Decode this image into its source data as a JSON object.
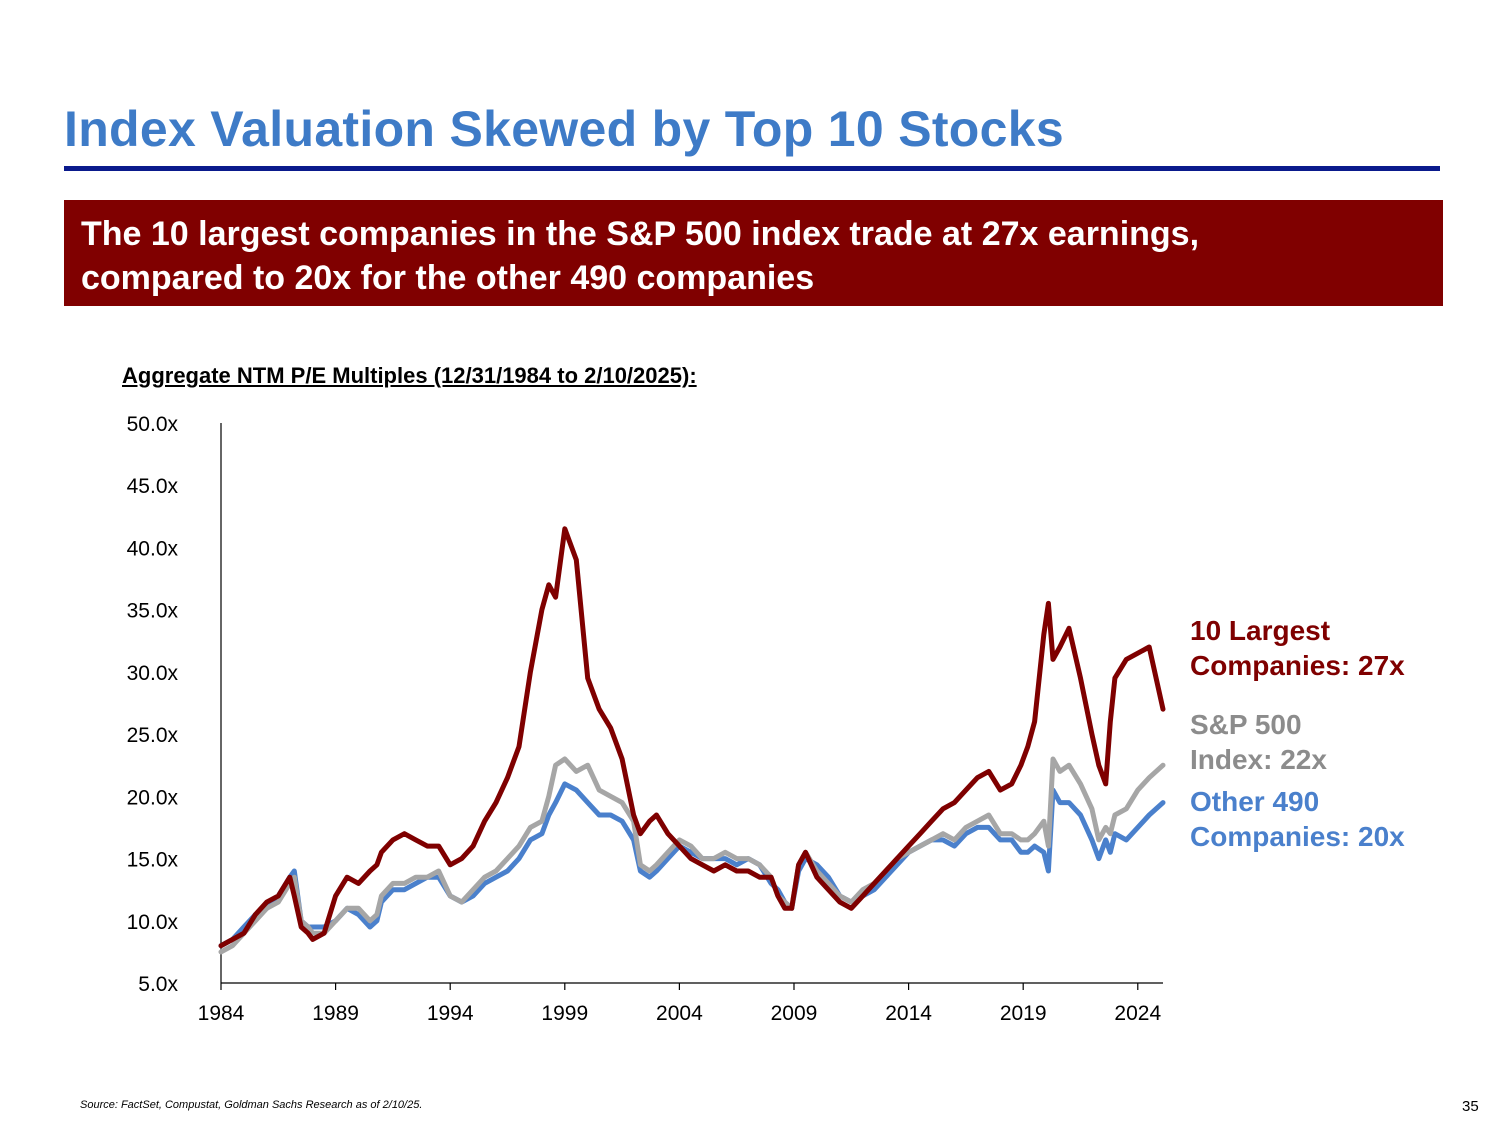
{
  "slide": {
    "title": "Index Valuation Skewed by Top 10 Stocks",
    "callout_line1": "The 10 largest companies in the S&P 500 index trade at 27x earnings,",
    "callout_line2": "compared to 20x for the other 490 companies",
    "chart_heading": "Aggregate NTM P/E Multiples (12/31/1984 to 2/10/2025):",
    "source": "Source: FactSet, Compustat, Goldman Sachs Research as of 2/10/25.",
    "page_number": "35"
  },
  "legend": {
    "top10_line1": "10 Largest",
    "top10_line2": "Companies: 27x",
    "sp500_line1": "S&P 500",
    "sp500_line2": "Index: 22x",
    "other_line1": "Other 490",
    "other_line2": "Companies: 20x"
  },
  "colors": {
    "title": "#3e7bc7",
    "rule": "#0a1a8c",
    "callout_bg": "#800000",
    "top10": "#7f0000",
    "sp500": "#a6a6a6",
    "other490": "#4a80cc"
  },
  "chart_data": {
    "type": "line",
    "title": "Aggregate NTM P/E Multiples (12/31/1984 to 2/10/2025):",
    "xlabel": "",
    "ylabel": "",
    "xlim": [
      1984,
      2025.1
    ],
    "ylim": [
      5,
      50
    ],
    "x_ticks": [
      1984,
      1989,
      1994,
      1999,
      2004,
      2009,
      2014,
      2019,
      2024
    ],
    "x_tick_labels": [
      "1984",
      "1989",
      "1994",
      "1999",
      "2004",
      "2009",
      "2014",
      "2019",
      "2024"
    ],
    "y_ticks": [
      5,
      10,
      15,
      20,
      25,
      30,
      35,
      40,
      45,
      50
    ],
    "y_tick_labels": [
      "5.0x",
      "10.0x",
      "15.0x",
      "20.0x",
      "25.0x",
      "30.0x",
      "35.0x",
      "40.0x",
      "45.0x",
      "50.0x"
    ],
    "grid": false,
    "series": [
      {
        "name": "Other 490 Companies",
        "key": "other490",
        "x": [
          1984.0,
          1984.5,
          1985.0,
          1985.5,
          1986.0,
          1986.5,
          1987.0,
          1987.2,
          1987.5,
          1987.8,
          1988.0,
          1988.5,
          1989.0,
          1989.5,
          1990.0,
          1990.5,
          1990.8,
          1991.0,
          1991.5,
          1992.0,
          1992.5,
          1993.0,
          1993.5,
          1994.0,
          1994.5,
          1995.0,
          1995.5,
          1996.0,
          1996.5,
          1997.0,
          1997.5,
          1998.0,
          1998.3,
          1998.6,
          1999.0,
          1999.5,
          2000.0,
          2000.5,
          2001.0,
          2001.5,
          2002.0,
          2002.3,
          2002.7,
          2003.0,
          2003.5,
          2004.0,
          2004.5,
          2005.0,
          2005.5,
          2006.0,
          2006.5,
          2007.0,
          2007.5,
          2008.0,
          2008.3,
          2008.6,
          2008.9,
          2009.2,
          2009.5,
          2010.0,
          2010.5,
          2011.0,
          2011.5,
          2012.0,
          2012.5,
          2013.0,
          2013.5,
          2014.0,
          2014.5,
          2015.0,
          2015.5,
          2016.0,
          2016.5,
          2017.0,
          2017.5,
          2018.0,
          2018.5,
          2018.9,
          2019.2,
          2019.5,
          2019.9,
          2020.1,
          2020.3,
          2020.6,
          2021.0,
          2021.5,
          2022.0,
          2022.3,
          2022.6,
          2022.8,
          2023.0,
          2023.5,
          2024.0,
          2024.5,
          2025.1
        ],
        "y": [
          8.0,
          8.5,
          9.5,
          10.5,
          11.0,
          12.0,
          13.5,
          14.0,
          10.0,
          9.5,
          9.5,
          9.5,
          10.0,
          11.0,
          10.5,
          9.5,
          10.0,
          11.5,
          12.5,
          12.5,
          13.0,
          13.5,
          13.5,
          12.0,
          11.5,
          12.0,
          13.0,
          13.5,
          14.0,
          15.0,
          16.5,
          17.0,
          18.5,
          19.5,
          21.0,
          20.5,
          19.5,
          18.5,
          18.5,
          18.0,
          16.5,
          14.0,
          13.5,
          14.0,
          15.0,
          16.0,
          15.5,
          15.0,
          15.0,
          15.0,
          14.5,
          15.0,
          14.5,
          13.0,
          12.5,
          11.5,
          11.0,
          14.0,
          15.0,
          14.5,
          13.5,
          12.0,
          11.5,
          12.0,
          12.5,
          13.5,
          14.5,
          15.5,
          16.0,
          16.5,
          16.5,
          16.0,
          17.0,
          17.5,
          17.5,
          16.5,
          16.5,
          15.5,
          15.5,
          16.0,
          15.5,
          14.0,
          20.5,
          19.5,
          19.5,
          18.5,
          16.5,
          15.0,
          16.5,
          15.5,
          17.0,
          16.5,
          17.5,
          18.5,
          19.5
        ]
      },
      {
        "name": "S&P 500 Index",
        "key": "sp500",
        "x": [
          1984.0,
          1984.5,
          1985.0,
          1985.5,
          1986.0,
          1986.5,
          1987.0,
          1987.2,
          1987.5,
          1987.8,
          1988.0,
          1988.5,
          1989.0,
          1989.5,
          1990.0,
          1990.5,
          1990.8,
          1991.0,
          1991.5,
          1992.0,
          1992.5,
          1993.0,
          1993.5,
          1994.0,
          1994.5,
          1995.0,
          1995.5,
          1996.0,
          1996.5,
          1997.0,
          1997.5,
          1998.0,
          1998.3,
          1998.6,
          1999.0,
          1999.5,
          2000.0,
          2000.5,
          2001.0,
          2001.5,
          2002.0,
          2002.3,
          2002.7,
          2003.0,
          2003.5,
          2004.0,
          2004.5,
          2005.0,
          2005.5,
          2006.0,
          2006.5,
          2007.0,
          2007.5,
          2008.0,
          2008.3,
          2008.6,
          2008.9,
          2009.2,
          2009.5,
          2010.0,
          2010.5,
          2011.0,
          2011.5,
          2012.0,
          2012.5,
          2013.0,
          2013.5,
          2014.0,
          2014.5,
          2015.0,
          2015.5,
          2016.0,
          2016.5,
          2017.0,
          2017.5,
          2018.0,
          2018.5,
          2018.9,
          2019.2,
          2019.5,
          2019.9,
          2020.1,
          2020.3,
          2020.6,
          2021.0,
          2021.5,
          2022.0,
          2022.3,
          2022.6,
          2022.8,
          2023.0,
          2023.5,
          2024.0,
          2024.5,
          2025.1
        ],
        "y": [
          7.5,
          8.0,
          9.0,
          10.0,
          11.0,
          11.5,
          13.0,
          13.5,
          10.0,
          9.5,
          9.0,
          9.0,
          10.0,
          11.0,
          11.0,
          10.0,
          10.5,
          12.0,
          13.0,
          13.0,
          13.5,
          13.5,
          14.0,
          12.0,
          11.5,
          12.5,
          13.5,
          14.0,
          15.0,
          16.0,
          17.5,
          18.0,
          20.0,
          22.5,
          23.0,
          22.0,
          22.5,
          20.5,
          20.0,
          19.5,
          18.0,
          14.5,
          14.0,
          14.5,
          15.5,
          16.5,
          16.0,
          15.0,
          15.0,
          15.5,
          15.0,
          15.0,
          14.5,
          13.5,
          12.0,
          11.5,
          11.0,
          14.5,
          15.5,
          14.0,
          13.0,
          12.0,
          11.5,
          12.5,
          13.0,
          14.0,
          15.0,
          15.5,
          16.0,
          16.5,
          17.0,
          16.5,
          17.5,
          18.0,
          18.5,
          17.0,
          17.0,
          16.5,
          16.5,
          17.0,
          18.0,
          16.0,
          23.0,
          22.0,
          22.5,
          21.0,
          19.0,
          16.5,
          17.5,
          17.0,
          18.5,
          19.0,
          20.5,
          21.5,
          22.5
        ]
      },
      {
        "name": "10 Largest Companies",
        "key": "top10",
        "x": [
          1984.0,
          1984.5,
          1985.0,
          1985.5,
          1986.0,
          1986.5,
          1987.0,
          1987.2,
          1987.5,
          1987.8,
          1988.0,
          1988.5,
          1989.0,
          1989.5,
          1990.0,
          1990.5,
          1990.8,
          1991.0,
          1991.5,
          1992.0,
          1992.5,
          1993.0,
          1993.5,
          1994.0,
          1994.5,
          1995.0,
          1995.5,
          1996.0,
          1996.5,
          1997.0,
          1997.5,
          1998.0,
          1998.3,
          1998.6,
          1999.0,
          1999.5,
          2000.0,
          2000.5,
          2001.0,
          2001.5,
          2002.0,
          2002.3,
          2002.7,
          2003.0,
          2003.5,
          2004.0,
          2004.5,
          2005.0,
          2005.5,
          2006.0,
          2006.5,
          2007.0,
          2007.5,
          2008.0,
          2008.3,
          2008.6,
          2008.9,
          2009.2,
          2009.5,
          2010.0,
          2010.5,
          2011.0,
          2011.5,
          2012.0,
          2012.5,
          2013.0,
          2013.5,
          2014.0,
          2014.5,
          2015.0,
          2015.5,
          2016.0,
          2016.5,
          2017.0,
          2017.5,
          2018.0,
          2018.5,
          2018.9,
          2019.2,
          2019.5,
          2019.9,
          2020.1,
          2020.3,
          2020.6,
          2021.0,
          2021.5,
          2022.0,
          2022.3,
          2022.6,
          2022.8,
          2023.0,
          2023.5,
          2024.0,
          2024.5,
          2025.1
        ],
        "y": [
          8.0,
          8.5,
          9.0,
          10.5,
          11.5,
          12.0,
          13.5,
          12.0,
          9.5,
          9.0,
          8.5,
          9.0,
          12.0,
          13.5,
          13.0,
          14.0,
          14.5,
          15.5,
          16.5,
          17.0,
          16.5,
          16.0,
          16.0,
          14.5,
          15.0,
          16.0,
          18.0,
          19.5,
          21.5,
          24.0,
          30.0,
          35.0,
          37.0,
          36.0,
          41.5,
          39.0,
          29.5,
          27.0,
          25.5,
          23.0,
          18.5,
          17.0,
          18.0,
          18.5,
          17.0,
          16.0,
          15.0,
          14.5,
          14.0,
          14.5,
          14.0,
          14.0,
          13.5,
          13.5,
          12.0,
          11.0,
          11.0,
          14.5,
          15.5,
          13.5,
          12.5,
          11.5,
          11.0,
          12.0,
          13.0,
          14.0,
          15.0,
          16.0,
          17.0,
          18.0,
          19.0,
          19.5,
          20.5,
          21.5,
          22.0,
          20.5,
          21.0,
          22.5,
          24.0,
          26.0,
          33.0,
          35.5,
          31.0,
          32.0,
          33.5,
          29.5,
          25.0,
          22.5,
          21.0,
          26.0,
          29.5,
          31.0,
          31.5,
          32.0,
          27.0
        ]
      }
    ]
  }
}
